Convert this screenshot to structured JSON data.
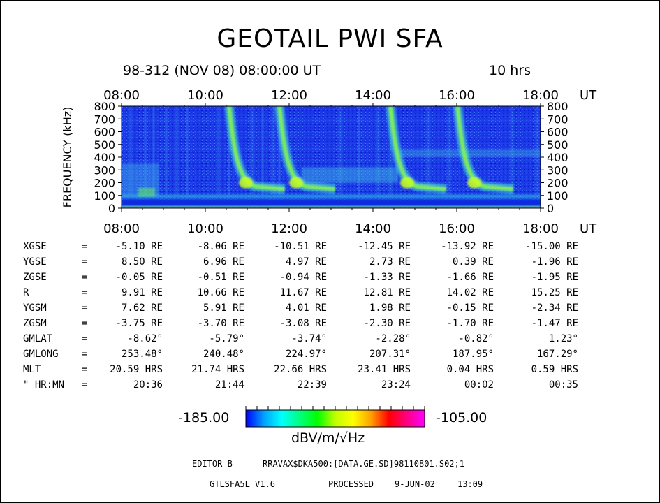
{
  "header": {
    "title": "GEOTAIL PWI SFA",
    "date_line": "98-312 (NOV 08) 08:00:00 UT",
    "duration": "10 hrs"
  },
  "chart_data": {
    "type": "heatmap",
    "title": "GEOTAIL PWI SFA",
    "ylabel": "FREQUENCY (kHz)",
    "xlabel": "UT",
    "x_ticks": [
      "08:00",
      "10:00",
      "12:00",
      "14:00",
      "16:00",
      "18:00"
    ],
    "y_ticks": [
      "0",
      "100",
      "200",
      "300",
      "400",
      "500",
      "600",
      "700",
      "800"
    ],
    "xlim_hours": [
      8,
      18
    ],
    "ylim_khz": [
      0,
      800
    ],
    "colorbar": {
      "min": "-185.00",
      "max": "-105.00",
      "unit": "dBV/m/√Hz",
      "colors": [
        "#0000ff",
        "#00a0ff",
        "#00ffff",
        "#00ff80",
        "#00ff00",
        "#c0ff00",
        "#ffff00",
        "#ffa000",
        "#ff0000",
        "#ff0080",
        "#ff00ff"
      ]
    },
    "background_color": "#1530e0",
    "emission_bursts_hours": [
      10.9,
      12.1,
      14.75,
      16.35
    ]
  },
  "ephemeris": {
    "rows": [
      {
        "label": "XGSE",
        "eq": "=",
        "values": [
          "-5.10 RE",
          "-8.06 RE",
          "-10.51 RE",
          "-12.45 RE",
          "-13.92 RE",
          "-15.00 RE"
        ]
      },
      {
        "label": "YGSE",
        "eq": "=",
        "values": [
          "8.50 RE",
          "6.96 RE",
          "4.97 RE",
          "2.73 RE",
          "0.39 RE",
          "-1.96 RE"
        ]
      },
      {
        "label": "ZGSE",
        "eq": "=",
        "values": [
          "-0.05 RE",
          "-0.51 RE",
          "-0.94 RE",
          "-1.33 RE",
          "-1.66 RE",
          "-1.95 RE"
        ]
      },
      {
        "label": "R",
        "eq": "=",
        "values": [
          "9.91 RE",
          "10.66 RE",
          "11.67 RE",
          "12.81 RE",
          "14.02 RE",
          "15.25 RE"
        ]
      },
      {
        "label": "YGSM",
        "eq": "=",
        "values": [
          "7.62 RE",
          "5.91 RE",
          "4.01 RE",
          "1.98 RE",
          "-0.15 RE",
          "-2.34 RE"
        ]
      },
      {
        "label": "ZGSM",
        "eq": "=",
        "values": [
          "-3.75 RE",
          "-3.70 RE",
          "-3.08 RE",
          "-2.30 RE",
          "-1.70 RE",
          "-1.47 RE"
        ]
      },
      {
        "label": "GMLAT",
        "eq": "=",
        "values": [
          "-8.62°",
          "-5.79°",
          "-3.74°",
          "-2.28°",
          "-0.82°",
          "1.23°"
        ]
      },
      {
        "label": "GMLONG",
        "eq": "=",
        "values": [
          "253.48°",
          "240.48°",
          "224.97°",
          "207.31°",
          "187.95°",
          "167.29°"
        ]
      },
      {
        "label": "MLT",
        "eq": "=",
        "values": [
          "20.59 HRS",
          "21.74 HRS",
          "22.66 HRS",
          "23.41 HRS",
          "0.04 HRS",
          "0.59 HRS"
        ]
      },
      {
        "label": "\" HR:MN",
        "eq": "=",
        "values": [
          "20:36",
          "21:44",
          "22:39",
          "23:24",
          "00:02",
          "00:35"
        ]
      }
    ]
  },
  "footer": {
    "editor_label": "EDITOR B",
    "file_path": "RRAVAX$DKA500:[DATA.GE.SD]98110801.S02;1",
    "program": "GTLSFA5L V1.6",
    "processed_label": "PROCESSED",
    "processed_date": "9-JUN-02",
    "processed_time": "13:09"
  }
}
